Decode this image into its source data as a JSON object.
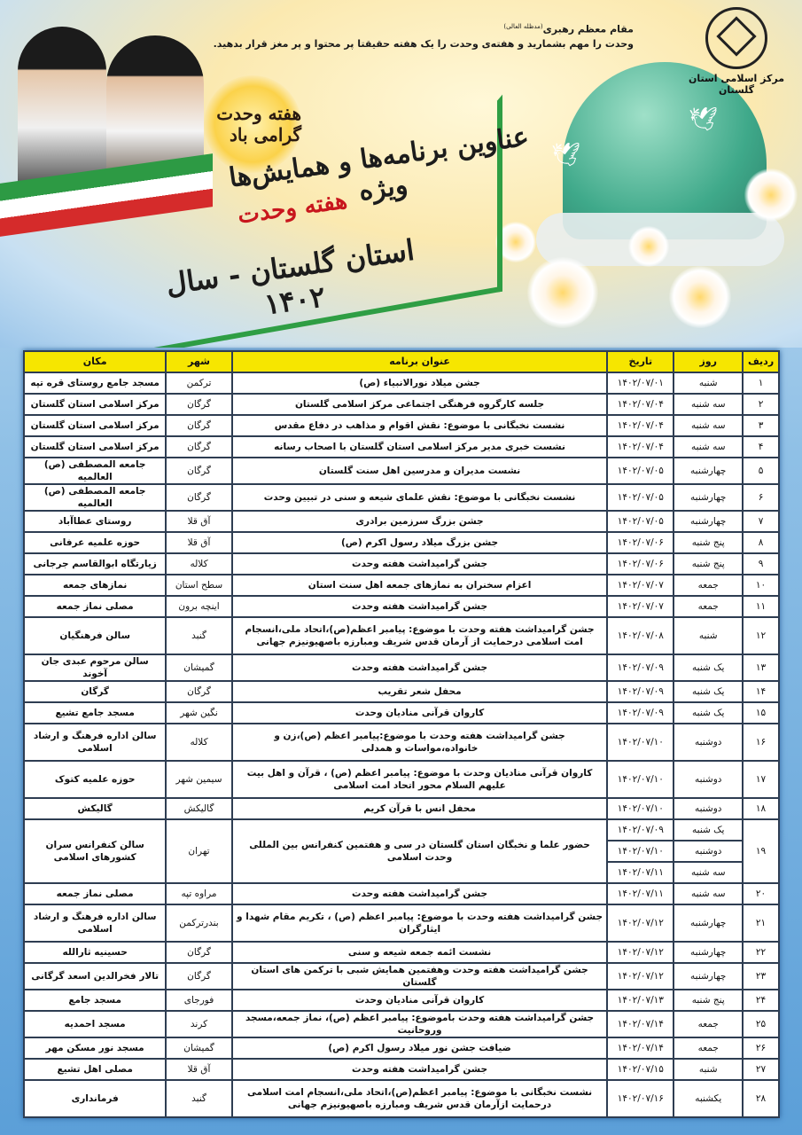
{
  "header": {
    "org_logo_text": "مرکز اسلامی استان گلستان",
    "quote_author": "مقام معظم رهبری",
    "quote_honorific": "(مدظله العالی)",
    "quote_text": "وحدت را مهم بشمارید و هفته‌ی وحدت را یک هفته حقیقتا پر محتوا و پر مغز قرار بدهید.",
    "badge_text": "هفته وحدت گرامی باد",
    "title_line1": "عناوین برنامه‌ها و همایش‌ها ویژه",
    "title_line1_accent": "هفته وحدت",
    "title_line2": "استان گلستان - سال ۱۴۰۲"
  },
  "colors": {
    "header_bg": "#f6e600",
    "border": "#2e3d52",
    "accent_red": "#c8161d",
    "frame_green": "#2f9e44"
  },
  "table": {
    "columns": [
      "ردیف",
      "روز",
      "تاریخ",
      "عنوان برنامه",
      "شهر",
      "مکان"
    ],
    "rows": [
      {
        "n": "۱",
        "days": [
          [
            "شنبه",
            "۱۴۰۲/۰۷/۰۱"
          ]
        ],
        "title": "جشن میلاد نورالانبیاء (ص)",
        "city": "ترکمن",
        "place": "مسجد جامع روستای قره تپه"
      },
      {
        "n": "۲",
        "days": [
          [
            "سه شنبه",
            "۱۴۰۲/۰۷/۰۴"
          ]
        ],
        "title": "جلسه کارگروه فرهنگی اجتماعی مرکز اسلامی گلستان",
        "city": "گرگان",
        "place": "مرکز اسلامی استان گلستان"
      },
      {
        "n": "۳",
        "days": [
          [
            "سه شنبه",
            "۱۴۰۲/۰۷/۰۴"
          ]
        ],
        "title": "نشست نخبگانی  با موضوع: نقش اقوام و مذاهب در دفاع مقدس",
        "city": "گرگان",
        "place": "مرکز اسلامی استان گلستان"
      },
      {
        "n": "۴",
        "days": [
          [
            "سه شنبه",
            "۱۴۰۲/۰۷/۰۴"
          ]
        ],
        "title": "نشست خبری مدیر مرکز اسلامی استان گلستان با اصحاب رسانه",
        "city": "گرگان",
        "place": "مرکز اسلامی استان گلستان"
      },
      {
        "n": "۵",
        "days": [
          [
            "چهارشنبه",
            "۱۴۰۲/۰۷/۰۵"
          ]
        ],
        "title": "نشست مدیران و مدرسین اهل سنت گلستان",
        "city": "گرگان",
        "place": "جامعه المصطفی (ص) العالمیه"
      },
      {
        "n": "۶",
        "days": [
          [
            "چهارشنبه",
            "۱۴۰۲/۰۷/۰۵"
          ]
        ],
        "title": "نشست نخبگانی با موضوع: نقش علمای شیعه و سنی در تبیین وحدت",
        "city": "گرگان",
        "place": "جامعه المصطفی (ص) العالمیه"
      },
      {
        "n": "۷",
        "days": [
          [
            "چهارشنبه",
            "۱۴۰۲/۰۷/۰۵"
          ]
        ],
        "title": "جشن بزرگ سرزمین برادری",
        "city": "آق قلا",
        "place": "روستای عطاآباد"
      },
      {
        "n": "۸",
        "days": [
          [
            "پنج شنبه",
            "۱۴۰۲/۰۷/۰۶"
          ]
        ],
        "title": "جشن بزرگ میلاد رسول اکرم (ص)",
        "city": "آق قلا",
        "place": "حوزه علمیه عرفانی"
      },
      {
        "n": "۹",
        "days": [
          [
            "پنج شنبه",
            "۱۴۰۲/۰۷/۰۶"
          ]
        ],
        "title": "جشن گرامیداشت هفته وحدت",
        "city": "کلاله",
        "place": "زیارتگاه ابوالقاسم جرجانی"
      },
      {
        "n": "۱۰",
        "days": [
          [
            "جمعه",
            "۱۴۰۲/۰۷/۰۷"
          ]
        ],
        "title": "اعزام سخنران به نمازهای جمعه اهل سنت استان",
        "city": "سطح استان",
        "place": "نمازهای جمعه"
      },
      {
        "n": "۱۱",
        "days": [
          [
            "جمعه",
            "۱۴۰۲/۰۷/۰۷"
          ]
        ],
        "title": "جشن گرامیداشت هفته وحدت",
        "city": "اینچه برون",
        "place": "مصلی نماز جمعه"
      },
      {
        "n": "۱۲",
        "days": [
          [
            "شنبه",
            "۱۴۰۲/۰۷/۰۸"
          ]
        ],
        "title": "جشن گرامیداشت هفته وحدت با موضوع: پیامبر اعظم(ص)،اتحاد ملی،انسجام امت اسلامی درحمایت از آرمان قدس شریف ومبارزه باصهیونیزم جهانی",
        "city": "گنبد",
        "place": "سالن فرهنگیان",
        "tall": true
      },
      {
        "n": "۱۳",
        "days": [
          [
            "یک شنبه",
            "۱۴۰۲/۰۷/۰۹"
          ]
        ],
        "title": "جشن گرامیداشت هفته وحدت",
        "city": "گمیشان",
        "place": "سالن مرحوم عبدی جان آخوند"
      },
      {
        "n": "۱۴",
        "days": [
          [
            "یک شنبه",
            "۱۴۰۲/۰۷/۰۹"
          ]
        ],
        "title": "محفل شعر تقریب",
        "city": "گرگان",
        "place": "گرگان"
      },
      {
        "n": "۱۵",
        "days": [
          [
            "یک شنبه",
            "۱۴۰۲/۰۷/۰۹"
          ]
        ],
        "title": "کاروان قرآنی منادیان وحدت",
        "city": "نگین شهر",
        "place": "مسجد جامع تشیع"
      },
      {
        "n": "۱۶",
        "days": [
          [
            "دوشنبه",
            "۱۴۰۲/۰۷/۱۰"
          ]
        ],
        "title": "جشن گرامیداشت هفته وحدت با موضوع:پیامبر اعظم (ص)،زن و خانواده،مواسات و همدلی",
        "city": "کلاله",
        "place": "سالن  اداره فرهنگ و ارشاد اسلامی",
        "tall": true
      },
      {
        "n": "۱۷",
        "days": [
          [
            "دوشنبه",
            "۱۴۰۲/۰۷/۱۰"
          ]
        ],
        "title": "کاروان قرآنی منادیان وحدت با موضوع: پیامبر اعظم (ص) ، قرآن و اهل بیت علیهم السلام محور اتحاد امت اسلامی",
        "city": "سیمین شهر",
        "place": "حوزه علمیه کتوک",
        "tall": true
      },
      {
        "n": "۱۸",
        "days": [
          [
            "دوشنبه",
            "۱۴۰۲/۰۷/۱۰"
          ]
        ],
        "title": "محفل انس با قرآن کریم",
        "city": "گالیکش",
        "place": "گالیکش"
      },
      {
        "n": "۱۹",
        "days": [
          [
            "یک شنبه",
            "۱۴۰۲/۰۷/۰۹"
          ],
          [
            "دوشنبه",
            "۱۴۰۲/۰۷/۱۰"
          ],
          [
            "سه شنبه",
            "۱۴۰۲/۰۷/۱۱"
          ]
        ],
        "title": "حضور علما و نخبگان استان گلستان در سی و هفتمین کنفرانس بین المللی وحدت اسلامی",
        "city": "تهران",
        "place": "سالن کنفرانس سران کشورهای اسلامی"
      },
      {
        "n": "۲۰",
        "days": [
          [
            "سه شنبه",
            "۱۴۰۲/۰۷/۱۱"
          ]
        ],
        "title": "جشن گرامیداشت هفته وحدت",
        "city": "مراوه تپه",
        "place": "مصلی نماز جمعه"
      },
      {
        "n": "۲۱",
        "days": [
          [
            "چهارشنبه",
            "۱۴۰۲/۰۷/۱۲"
          ]
        ],
        "title": "جشن گرامیداشت هفته وحدت با موضوع: پیامبر اعظم (ص) ، تکریم مقام شهدا و ایثارگران",
        "city": "بندرترکمن",
        "place": "سالن  اداره فرهنگ و ارشاد اسلامی",
        "tall": true
      },
      {
        "n": "۲۲",
        "days": [
          [
            "چهارشنبه",
            "۱۴۰۲/۰۷/۱۲"
          ]
        ],
        "title": "نشست ائمه جمعه شیعه و سنی",
        "city": "گرگان",
        "place": "حسینیه ثارالله"
      },
      {
        "n": "۲۳",
        "days": [
          [
            "چهارشنبه",
            "۱۴۰۲/۰۷/۱۲"
          ]
        ],
        "title": "جشن گرامیداشت هفته وحدت وهفتمین همایش شبی با ترکمن  های استان گلستان",
        "city": "گرگان",
        "place": "تالار فخرالدین اسعد گرگانی"
      },
      {
        "n": "۲۴",
        "days": [
          [
            "پنج شنبه",
            "۱۴۰۲/۰۷/۱۳"
          ]
        ],
        "title": "کاروان قرآنی منادیان وحدت",
        "city": "فورجای",
        "place": "مسجد جامع"
      },
      {
        "n": "۲۵",
        "days": [
          [
            "جمعه",
            "۱۴۰۲/۰۷/۱۴"
          ]
        ],
        "title": "جشن گرامیداشت هفته وحدت  باموضوع: پیامبر اعظم (ص)، نماز جمعه،مسجد وروحانیت",
        "city": "کرند",
        "place": "مسجد احمدیه"
      },
      {
        "n": "۲۶",
        "days": [
          [
            "جمعه",
            "۱۴۰۲/۰۷/۱۴"
          ]
        ],
        "title": "ضیافت جشن نور میلاد رسول اکرم (ص)",
        "city": "گمیشان",
        "place": "مسجد نور مسکن مهر"
      },
      {
        "n": "۲۷",
        "days": [
          [
            "شنبه",
            "۱۴۰۲/۰۷/۱۵"
          ]
        ],
        "title": "جشن گرامیداشت هفته وحدت",
        "city": "آق قلا",
        "place": "مصلی اهل تشیع"
      },
      {
        "n": "۲۸",
        "days": [
          [
            "یکشنبه",
            "۱۴۰۲/۰۷/۱۶"
          ]
        ],
        "title": "نشست نخبگانی با موضوع: پیامبر اعظم(ص)،اتحاد ملی،انسجام امت اسلامی درحمایت ازآرمان قدس شریف ومبارزه باصهیونیزم جهانی",
        "city": "گنبد",
        "place": "فرمانداری",
        "tall": true
      }
    ]
  }
}
